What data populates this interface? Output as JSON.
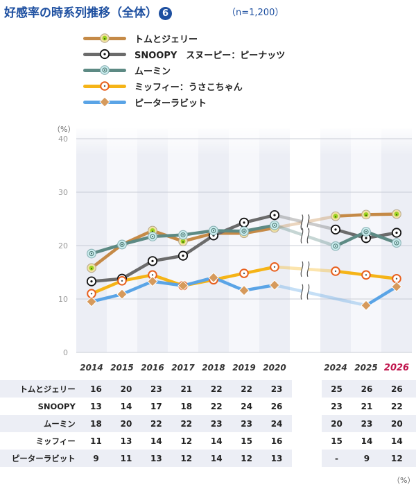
{
  "title": "好感率の時系列推移（全体）",
  "title_number": "6",
  "sample": "（n=1,200）",
  "unit_top": "（%）",
  "unit_bottom": "（%）",
  "colors": {
    "tom": "#c58a47",
    "snoopy": "#6b6b6b",
    "moomin": "#5d8a84",
    "miffy": "#f5b417",
    "peter": "#5aa4e6",
    "highlight": "#c0154d",
    "title": "#1d4fa0"
  },
  "legend": [
    {
      "key": "tom",
      "label": "トムとジェリー",
      "icon": "lime-cheese-circle-icon"
    },
    {
      "key": "snoopy",
      "label": "SNOOPY　スヌーピー：ピーナッツ",
      "icon": "dot-circle-icon"
    },
    {
      "key": "moomin",
      "label": "ムーミン",
      "icon": "teal-circle-icon"
    },
    {
      "key": "miffy",
      "label": "ミッフィー：うさこちゃん",
      "icon": "orange-ring-icon"
    },
    {
      "key": "peter",
      "label": "ピーターラビット",
      "icon": "diamond-icon"
    }
  ],
  "chart_data": {
    "type": "line",
    "categories": [
      "2014",
      "2015",
      "2016",
      "2017",
      "2018",
      "2019",
      "2020",
      "2024",
      "2025",
      "2026"
    ],
    "highlight_category": "2026",
    "axis_break_between": [
      "2020",
      "2024"
    ],
    "y_ticks": [
      "0",
      "10",
      "20",
      "30",
      "40"
    ],
    "ylim": [
      0,
      40
    ],
    "grid": true,
    "series": [
      {
        "name": "トムとジェリー",
        "key": "tom",
        "values": [
          16,
          20,
          23,
          21,
          22,
          22,
          23,
          25,
          26,
          26
        ],
        "plot": [
          15.8,
          20.2,
          22.8,
          20.8,
          22.3,
          22.3,
          23.3,
          25.5,
          25.8,
          25.9
        ]
      },
      {
        "name": "SNOOPY",
        "key": "snoopy",
        "values": [
          13,
          14,
          17,
          18,
          22,
          24,
          26,
          23,
          21,
          22
        ],
        "plot": [
          13.3,
          13.8,
          17.1,
          18.1,
          21.9,
          24.3,
          25.7,
          23.0,
          21.4,
          22.4
        ]
      },
      {
        "name": "ムーミン",
        "key": "moomin",
        "values": [
          18,
          20,
          22,
          22,
          23,
          23,
          24,
          20,
          23,
          20
        ],
        "plot": [
          18.5,
          20.2,
          21.7,
          22.0,
          22.8,
          22.7,
          23.8,
          19.9,
          22.6,
          20.5
        ]
      },
      {
        "name": "ミッフィー",
        "key": "miffy",
        "values": [
          11,
          13,
          14,
          12,
          14,
          15,
          16,
          15,
          14,
          14
        ],
        "plot": [
          11.0,
          13.4,
          14.5,
          12.5,
          13.6,
          14.8,
          16.0,
          15.2,
          14.5,
          13.8
        ]
      },
      {
        "name": "ピーターラビット",
        "key": "peter",
        "values": [
          9,
          11,
          13,
          12,
          14,
          12,
          13,
          null,
          9,
          12
        ],
        "plot": [
          9.5,
          10.9,
          13.3,
          12.5,
          14.0,
          11.6,
          12.6,
          null,
          8.8,
          12.3
        ]
      }
    ]
  },
  "table": {
    "rows": [
      {
        "label": "トムとジェリー",
        "cells": [
          "16",
          "20",
          "23",
          "21",
          "22",
          "22",
          "23",
          "",
          "25",
          "26",
          "26"
        ]
      },
      {
        "label": "SNOOPY",
        "cells": [
          "13",
          "14",
          "17",
          "18",
          "22",
          "24",
          "26",
          "",
          "23",
          "21",
          "22"
        ]
      },
      {
        "label": "ムーミン",
        "cells": [
          "18",
          "20",
          "22",
          "22",
          "23",
          "23",
          "24",
          "",
          "20",
          "23",
          "20"
        ]
      },
      {
        "label": "ミッフィー",
        "cells": [
          "11",
          "13",
          "14",
          "12",
          "14",
          "15",
          "16",
          "",
          "15",
          "14",
          "14"
        ]
      },
      {
        "label": "ピーターラビット",
        "cells": [
          "9",
          "11",
          "13",
          "12",
          "14",
          "12",
          "13",
          "",
          "-",
          "9",
          "12"
        ]
      }
    ]
  }
}
